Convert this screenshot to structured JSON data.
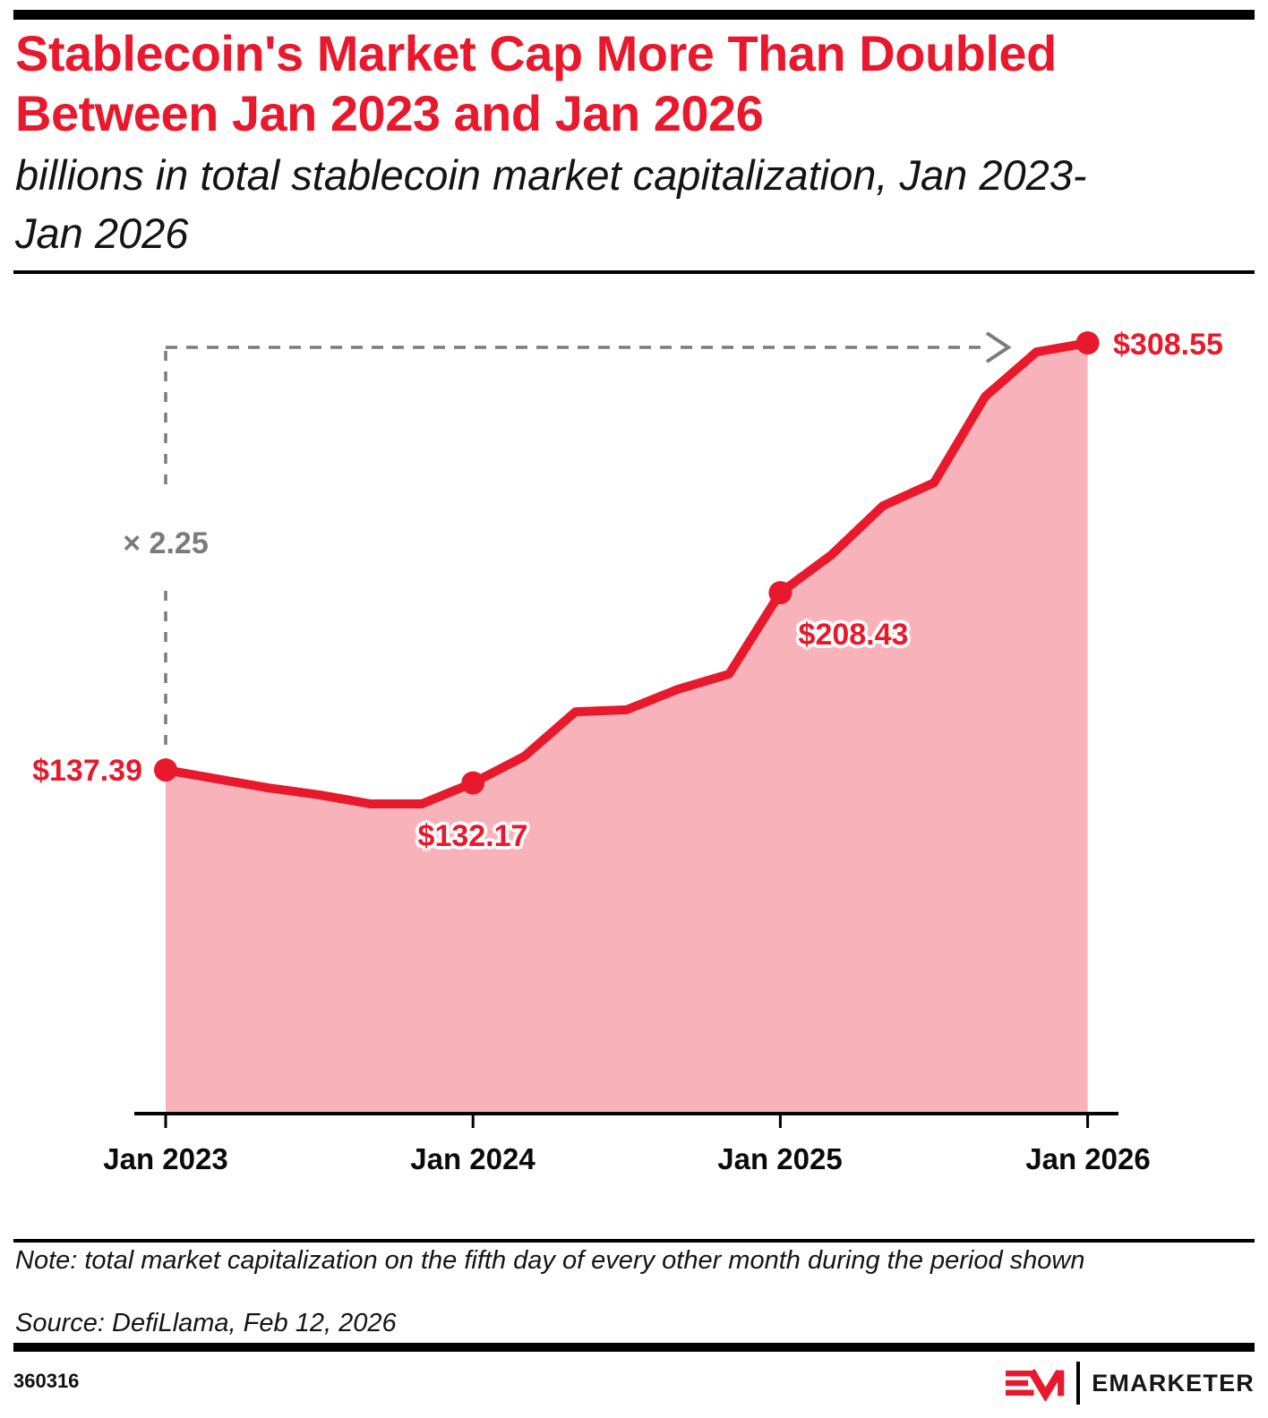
{
  "header": {
    "title": "Stablecoin's Market Cap More Than Doubled Between Jan 2023 and Jan 2026",
    "subtitle": "billions in total stablecoin market capitalization, Jan 2023-Jan 2026"
  },
  "chart_data": {
    "type": "area",
    "title": "Stablecoin's Market Cap More Than Doubled Between Jan 2023 and Jan 2026",
    "subtitle": "billions in total stablecoin market capitalization, Jan 2023-Jan 2026",
    "x": [
      "Jan 2023",
      "Mar 2023",
      "May 2023",
      "Jul 2023",
      "Sep 2023",
      "Nov 2023",
      "Jan 2024",
      "Mar 2024",
      "May 2024",
      "Jul 2024",
      "Sep 2024",
      "Nov 2024",
      "Jan 2025",
      "Mar 2025",
      "May 2025",
      "Jul 2025",
      "Sep 2025",
      "Nov 2025",
      "Jan 2026"
    ],
    "values": [
      137.39,
      133.8,
      130.2,
      127.4,
      123.8,
      123.8,
      132.17,
      142.8,
      160.7,
      161.5,
      169.7,
      175.8,
      208.43,
      223.6,
      243.2,
      252.5,
      287.1,
      304.9,
      308.55
    ],
    "x_tick_labels": [
      "Jan 2023",
      "Jan 2024",
      "Jan 2025",
      "Jan 2026"
    ],
    "ylim": [
      0,
      320
    ],
    "grid": false,
    "legend": "none",
    "marker_indices": [
      0,
      6,
      12,
      18
    ],
    "labeled_points": [
      {
        "x": "Jan 2023",
        "value": 137.39,
        "label": "$137.39"
      },
      {
        "x": "Jan 2024",
        "value": 132.17,
        "label": "$132.17"
      },
      {
        "x": "Jan 2025",
        "value": 208.43,
        "label": "$208.43"
      },
      {
        "x": "Jan 2026",
        "value": 308.55,
        "label": "$308.55"
      }
    ],
    "annotation": {
      "text": "× 2.25"
    },
    "colors": {
      "line": "#e8192c",
      "fill": "rgba(232,25,44,0.33)",
      "annotation": "#7b7b7b",
      "axis": "#000000"
    }
  },
  "footer": {
    "note": "Note: total market capitalization on the fifth day of every other month during the period shown",
    "source": "Source: DefiLlama, Feb 12, 2026",
    "chart_id": "360316",
    "brand": "EMARKETER"
  }
}
